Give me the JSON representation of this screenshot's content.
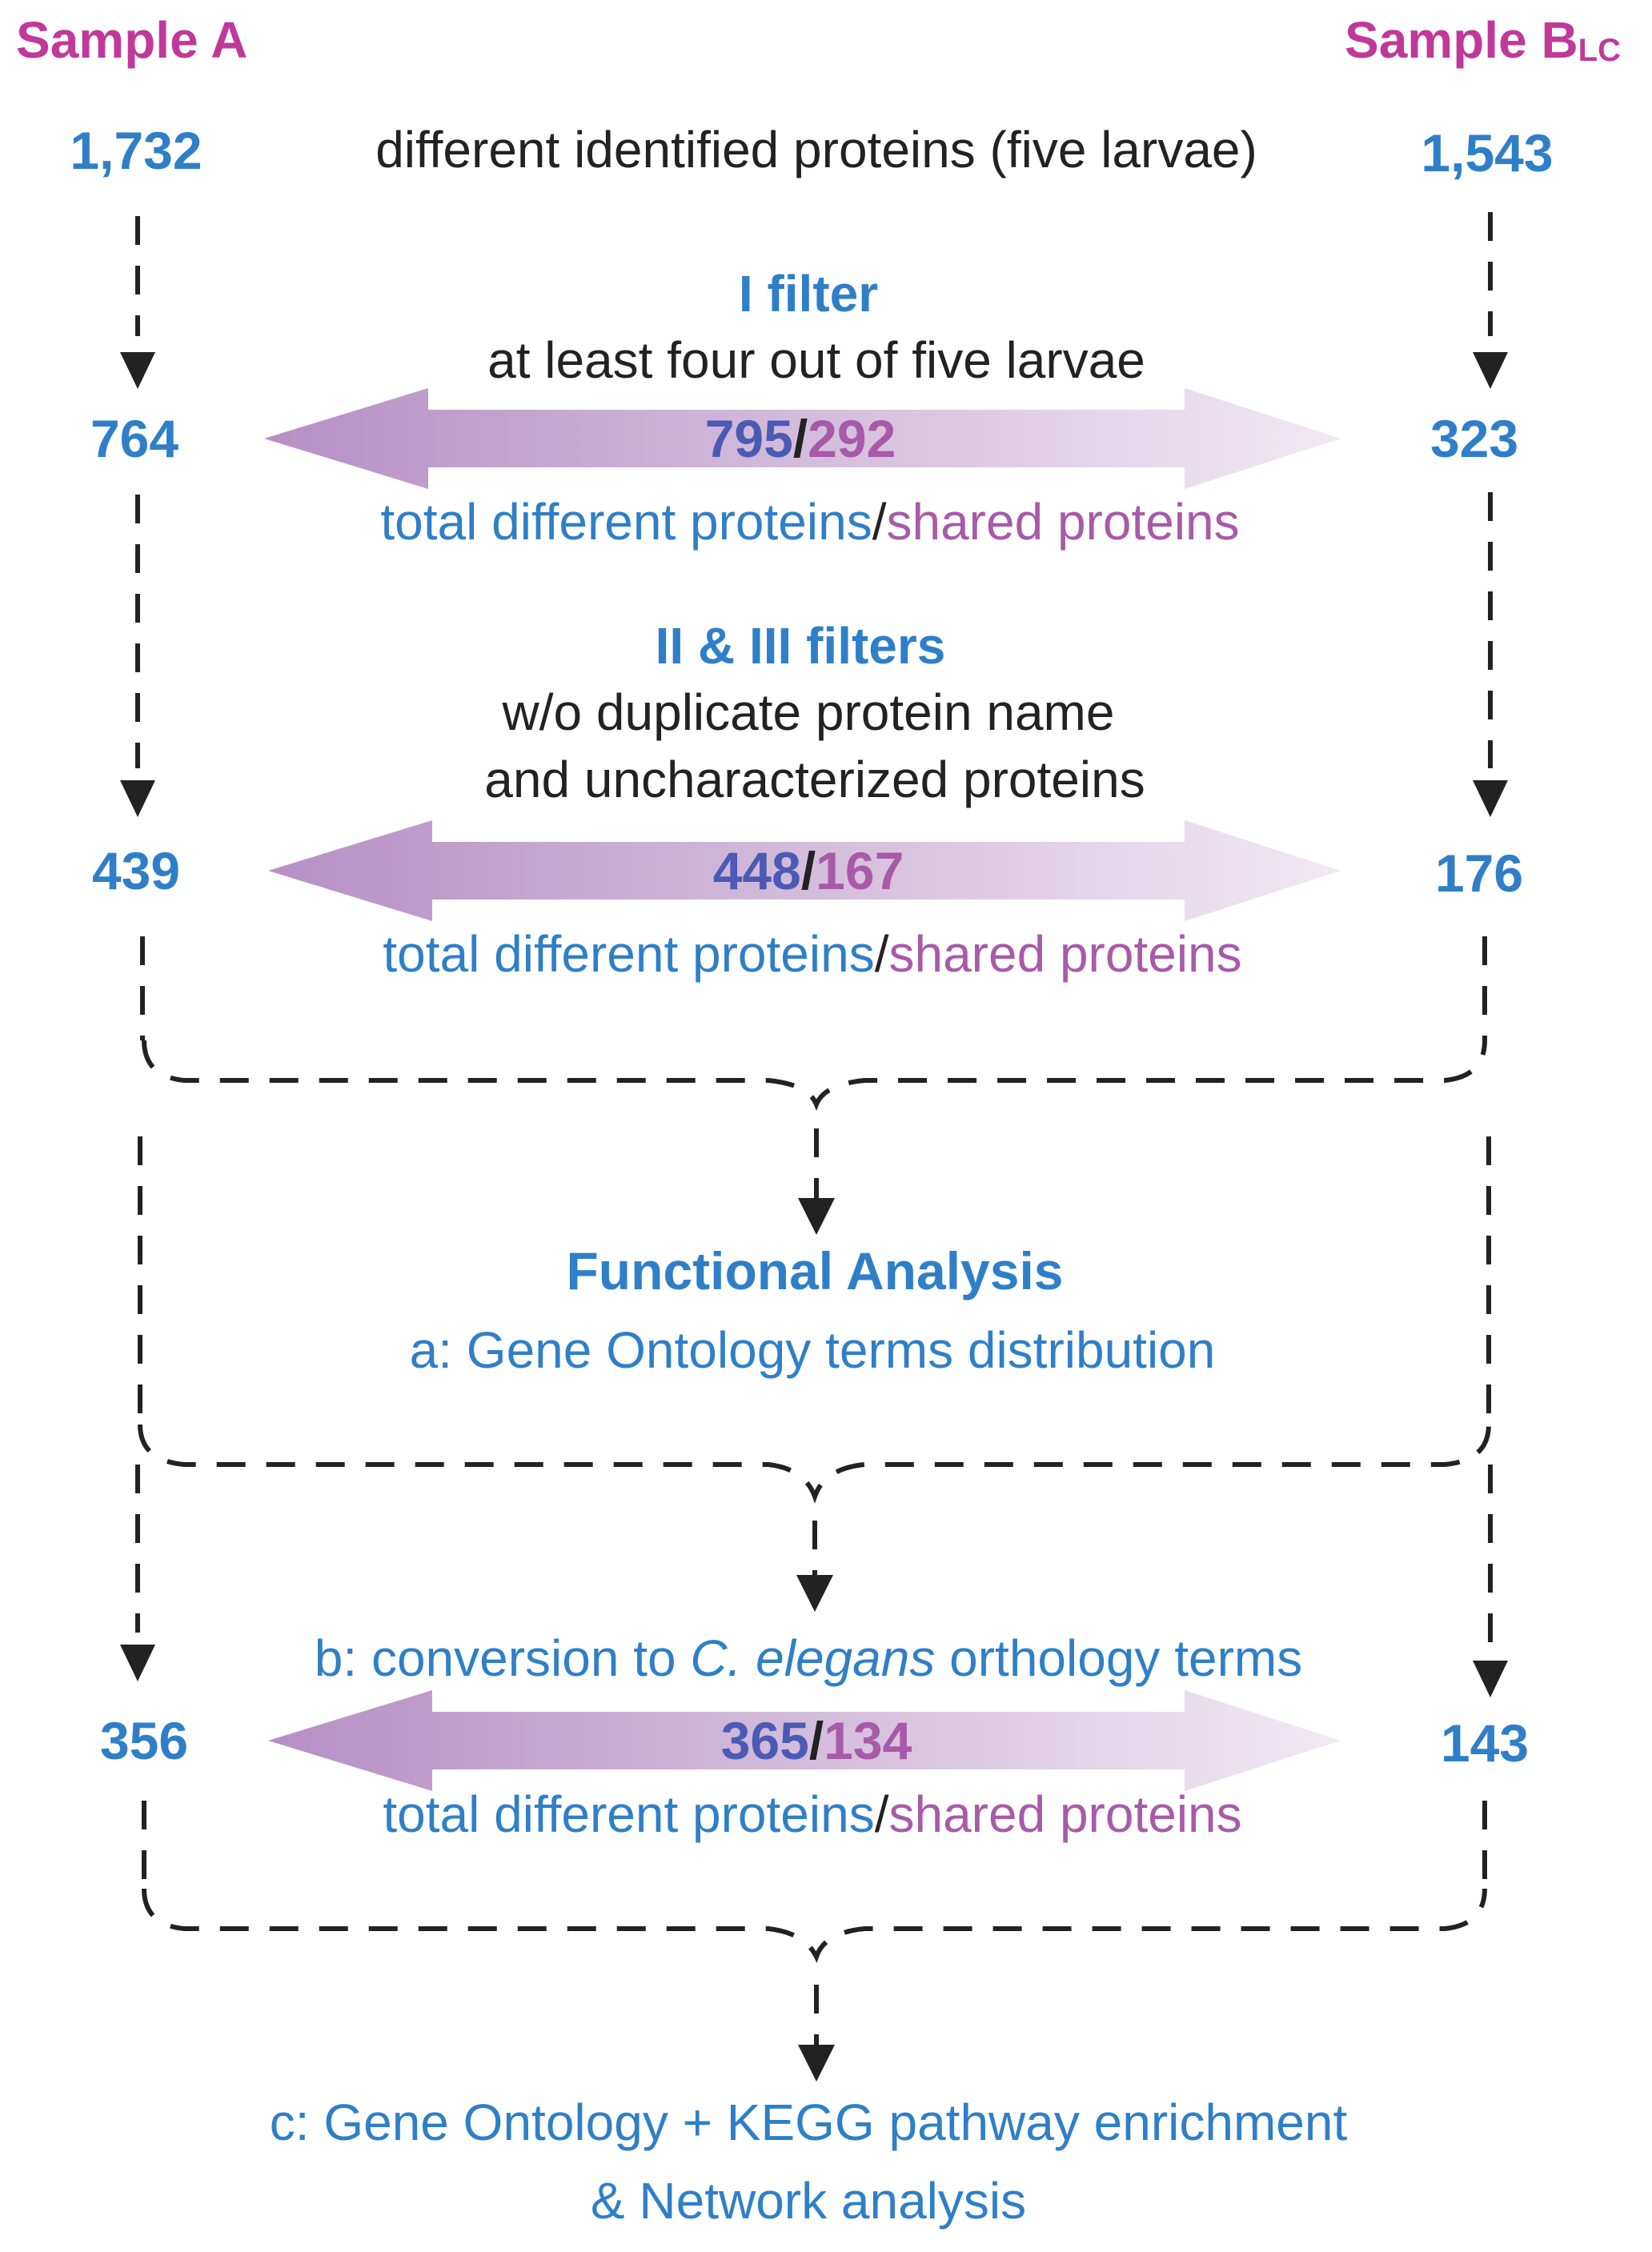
{
  "samples": {
    "a": {
      "label": "Sample A"
    },
    "b": {
      "label": "Sample B",
      "subscript": "LC"
    }
  },
  "stage0": {
    "left": "1,732",
    "text": "different identified proteins (five larvae)",
    "right": "1,543"
  },
  "stage1": {
    "filter_title": "I filter",
    "filter_desc": "at least four out of five larvae",
    "left": "764",
    "total": "795",
    "shared": "292",
    "right": "323",
    "caption_total": "total different proteins",
    "caption_sep": "/",
    "caption_shared": "shared proteins"
  },
  "stage2": {
    "filter_title": "II & III filters",
    "filter_desc_1": "w/o duplicate protein name",
    "filter_desc_2": "and uncharacterized proteins",
    "left": "439",
    "total": "448",
    "shared": "167",
    "right": "176",
    "caption_total": "total different proteins",
    "caption_sep": "/",
    "caption_shared": "shared proteins"
  },
  "functional": {
    "title": "Functional Analysis",
    "a": "a: Gene Ontology terms distribution"
  },
  "stage3": {
    "b_prefix": "b: conversion to ",
    "b_italic": "C. elegans",
    "b_suffix": " orthology terms",
    "left": "356",
    "total": "365",
    "shared": "134",
    "right": "143",
    "caption_total": "total different proteins",
    "caption_sep": "/",
    "caption_shared": "shared proteins"
  },
  "final": {
    "c_line1": "c: Gene Ontology + KEGG pathway enrichment",
    "c_line2": "& Network analysis"
  },
  "colors": {
    "sample_label": "#c0399a",
    "blue": "#2f7fc8",
    "purple": "#a85aa8",
    "arrow_left": "#b68fc4",
    "arrow_right": "#f1e9f3",
    "line": "#222222"
  }
}
